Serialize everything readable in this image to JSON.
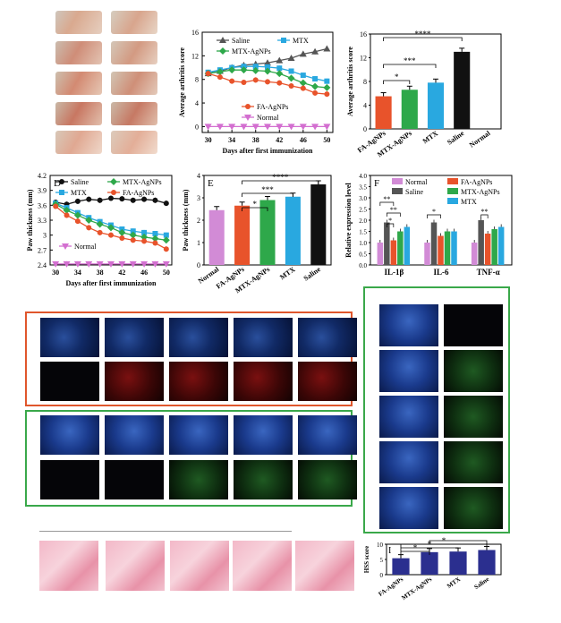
{
  "panel_labels": {
    "D": "D",
    "E": "E",
    "F": "F",
    "I": "I"
  },
  "chart_data": [
    {
      "id": "arthritis-line",
      "type": "line",
      "xlabel": "Days after first immunization",
      "ylabel": "Average arthritis score",
      "xlim": [
        29,
        51
      ],
      "ylim": [
        -1,
        16
      ],
      "xticks": [
        30,
        34,
        38,
        42,
        46,
        50
      ],
      "yticks": [
        0,
        4,
        8,
        12,
        16
      ],
      "x": [
        30,
        32,
        34,
        36,
        38,
        40,
        42,
        44,
        46,
        48,
        50
      ],
      "series": [
        {
          "name": "Saline",
          "color": "#555555",
          "marker": "triangle",
          "values": [
            9.0,
            9.4,
            10.0,
            10.4,
            10.6,
            10.8,
            11.2,
            11.6,
            12.3,
            12.7,
            13.2
          ]
        },
        {
          "name": "MTX",
          "color": "#29a8e0",
          "marker": "square",
          "values": [
            9.2,
            9.6,
            10.0,
            10.2,
            10.2,
            10.1,
            9.9,
            9.4,
            8.7,
            8.1,
            7.7
          ]
        },
        {
          "name": "MTX-AgNPs",
          "color": "#2ea84a",
          "marker": "diamond",
          "values": [
            9.0,
            9.3,
            9.6,
            9.6,
            9.5,
            9.4,
            9.0,
            8.2,
            7.4,
            6.8,
            6.6
          ]
        },
        {
          "name": "FA-AgNPs",
          "color": "#e8532b",
          "marker": "circle",
          "values": [
            9.0,
            8.4,
            7.7,
            7.5,
            7.9,
            7.6,
            7.4,
            6.9,
            6.5,
            5.7,
            5.5
          ]
        },
        {
          "name": "Normal",
          "color": "#d36fd0",
          "marker": "tri-down",
          "values": [
            0,
            0,
            0,
            0,
            0,
            0,
            0,
            0,
            0,
            0,
            0
          ]
        }
      ]
    },
    {
      "id": "arthritis-bar",
      "type": "bar",
      "ylabel": "Average arthritis score",
      "ylim": [
        0,
        16
      ],
      "yticks": [
        0,
        4,
        8,
        12,
        16
      ],
      "categories": [
        "FA-AgNPs",
        "MTX-AgNPs",
        "MTX",
        "Saline",
        "Normal"
      ],
      "values": [
        5.5,
        6.6,
        7.8,
        13.0,
        0
      ],
      "colors": [
        "#e8532b",
        "#2ea84a",
        "#29a8e0",
        "#111111",
        "#d36fd0"
      ],
      "significance": [
        "*",
        "***",
        "****"
      ]
    },
    {
      "id": "paw-line",
      "type": "line",
      "xlabel": "Days after first immunization",
      "ylabel": "Paw thickness (mm)",
      "xlim": [
        29,
        51
      ],
      "ylim": [
        2.4,
        4.2
      ],
      "xticks": [
        30,
        34,
        38,
        42,
        46,
        50
      ],
      "yticks": [
        2.4,
        2.7,
        3.0,
        3.3,
        3.6,
        3.9,
        4.2
      ],
      "x": [
        30,
        32,
        34,
        36,
        38,
        40,
        42,
        44,
        46,
        48,
        50
      ],
      "series": [
        {
          "name": "Saline",
          "color": "#111111",
          "marker": "circle",
          "values": [
            3.66,
            3.62,
            3.68,
            3.72,
            3.7,
            3.74,
            3.73,
            3.7,
            3.72,
            3.7,
            3.64
          ]
        },
        {
          "name": "MTX",
          "color": "#29a8e0",
          "marker": "square",
          "values": [
            3.64,
            3.55,
            3.45,
            3.35,
            3.27,
            3.2,
            3.12,
            3.08,
            3.05,
            3.03,
            3.0
          ]
        },
        {
          "name": "MTX-AgNPs",
          "color": "#2ea84a",
          "marker": "diamond",
          "values": [
            3.62,
            3.5,
            3.4,
            3.3,
            3.22,
            3.15,
            3.05,
            3.0,
            2.96,
            2.93,
            2.9
          ]
        },
        {
          "name": "FA-AgNPs",
          "color": "#e8532b",
          "marker": "circle",
          "values": [
            3.58,
            3.4,
            3.28,
            3.15,
            3.05,
            3.0,
            2.94,
            2.9,
            2.88,
            2.84,
            2.72
          ]
        },
        {
          "name": "Normal",
          "color": "#d36fd0",
          "marker": "tri-down",
          "values": [
            2.42,
            2.42,
            2.42,
            2.42,
            2.42,
            2.42,
            2.42,
            2.42,
            2.42,
            2.42,
            2.42
          ]
        }
      ]
    },
    {
      "id": "paw-bar",
      "type": "bar",
      "ylabel": "Paw thickness (mm)",
      "ylim": [
        0,
        4
      ],
      "yticks": [
        0,
        1,
        2,
        3,
        4
      ],
      "categories": [
        "Normal",
        "FA-AgNPs",
        "MTX-AgNPs",
        "MTX",
        "Saline"
      ],
      "values": [
        2.45,
        2.65,
        2.9,
        3.05,
        3.6
      ],
      "colors": [
        "#d28bd6",
        "#e8532b",
        "#2ea84a",
        "#29a8e0",
        "#111111"
      ],
      "significance": [
        "*",
        "***",
        "****"
      ]
    },
    {
      "id": "cytokine-bar",
      "type": "bar",
      "ylabel": "Relative expression level",
      "ylim": [
        0,
        4
      ],
      "yticks": [
        0.0,
        0.5,
        1.0,
        1.5,
        2.0,
        2.5,
        3.0,
        3.5,
        4.0
      ],
      "categories": [
        "IL-1β",
        "IL-6",
        "TNF-α"
      ],
      "series": [
        {
          "name": "Normal",
          "color": "#d28bd6",
          "values": [
            1.0,
            1.0,
            1.0
          ]
        },
        {
          "name": "Saline",
          "color": "#555555",
          "values": [
            1.9,
            1.9,
            2.0
          ]
        },
        {
          "name": "FA-AgNPs",
          "color": "#e8532b",
          "values": [
            1.1,
            1.3,
            1.4
          ]
        },
        {
          "name": "MTX-AgNPs",
          "color": "#2ea84a",
          "values": [
            1.5,
            1.5,
            1.6
          ]
        },
        {
          "name": "MTX",
          "color": "#29a8e0",
          "values": [
            1.7,
            1.5,
            1.7
          ]
        }
      ],
      "significance": [
        "**",
        "**",
        "*",
        "*",
        "**"
      ]
    },
    {
      "id": "hss-bar",
      "type": "bar",
      "ylabel": "HSS score",
      "ylim": [
        0,
        10
      ],
      "yticks": [
        0,
        5,
        10
      ],
      "categories": [
        "FA-AgNPs",
        "MTX-AgNPs",
        "MTX",
        "Saline"
      ],
      "values": [
        5.4,
        7.4,
        7.6,
        8.1
      ],
      "colors": [
        "#2b2f8f",
        "#2b2f8f",
        "#2b2f8f",
        "#2b2f8f"
      ],
      "significance": [
        "*",
        "*",
        "*",
        "**"
      ]
    }
  ]
}
